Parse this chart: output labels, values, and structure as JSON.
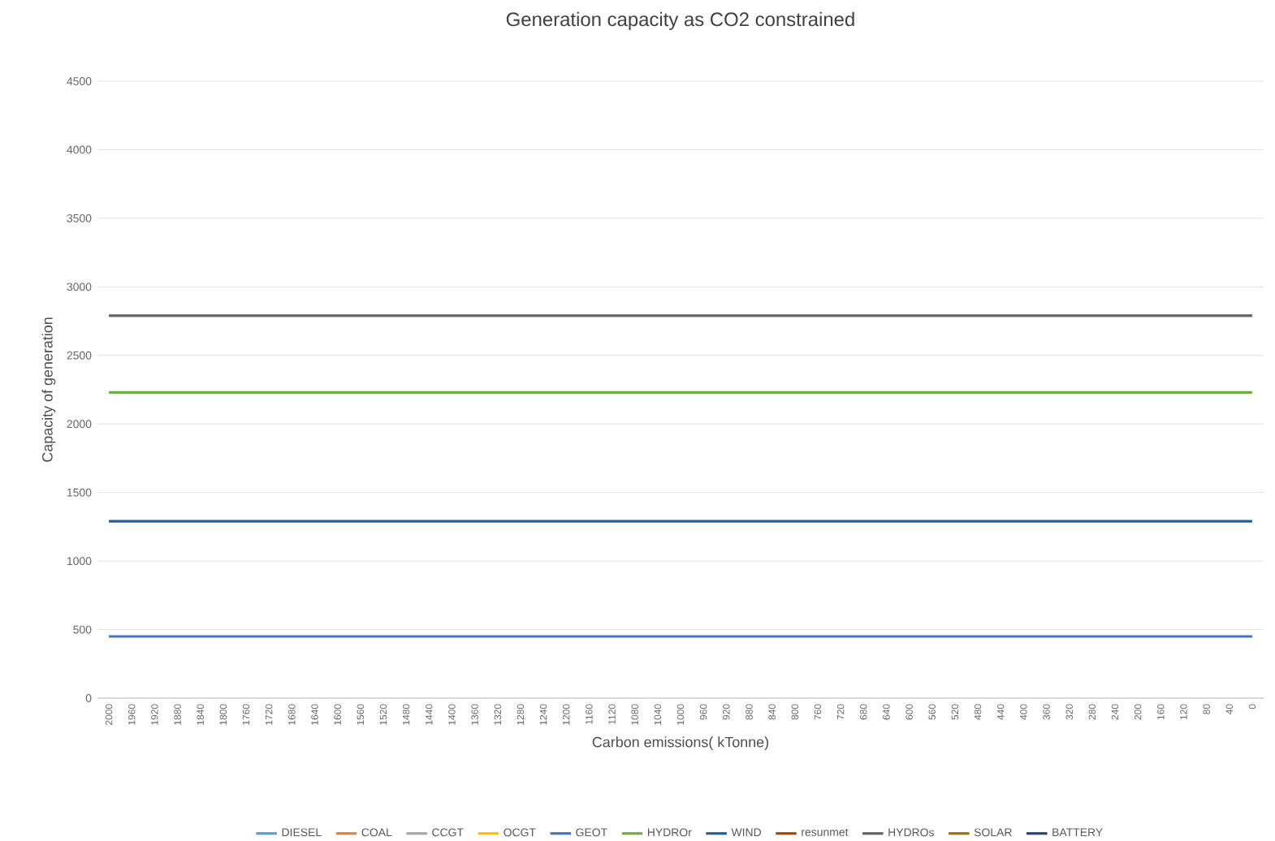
{
  "chart_data": {
    "type": "line",
    "title": "Generation capacity as CO2 constrained",
    "xlabel": "Carbon emissions( kTonne)",
    "ylabel": "Capacity of generation",
    "categories": [
      "2000",
      "1960",
      "1920",
      "1880",
      "1840",
      "1800",
      "1760",
      "1720",
      "1680",
      "1640",
      "1600",
      "1560",
      "1520",
      "1480",
      "1440",
      "1400",
      "1360",
      "1320",
      "1280",
      "1240",
      "1200",
      "1160",
      "1120",
      "1080",
      "1040",
      "1000",
      "960",
      "920",
      "880",
      "840",
      "800",
      "760",
      "720",
      "680",
      "640",
      "600",
      "560",
      "520",
      "480",
      "440",
      "400",
      "360",
      "320",
      "280",
      "240",
      "200",
      "160",
      "120",
      "80",
      "40",
      "0"
    ],
    "ylim": [
      0,
      4500
    ],
    "yticks": [
      0,
      500,
      1000,
      1500,
      2000,
      2500,
      3000,
      3500,
      4000,
      4500
    ],
    "grid": "y",
    "legend": "bottom",
    "marker": "none",
    "line_style": "solid",
    "series": [
      {
        "name": "DIESEL",
        "color": "#5b9bd5",
        "values": [
          null,
          null,
          null,
          null,
          null,
          null,
          null,
          null,
          null,
          null,
          null,
          null,
          null,
          null,
          null,
          null,
          null,
          null,
          null,
          null,
          null,
          null,
          null,
          null,
          null,
          null,
          null,
          null,
          null,
          null,
          null,
          null,
          null,
          null,
          null,
          null,
          null,
          null,
          null,
          null,
          null,
          null,
          null,
          null,
          null,
          null,
          null,
          null,
          null,
          null,
          null
        ]
      },
      {
        "name": "COAL",
        "color": "#ed7d31",
        "values": [
          null,
          null,
          null,
          null,
          null,
          null,
          null,
          null,
          null,
          null,
          null,
          null,
          null,
          null,
          null,
          null,
          null,
          null,
          null,
          null,
          null,
          null,
          null,
          null,
          null,
          null,
          null,
          null,
          null,
          null,
          null,
          null,
          null,
          null,
          null,
          null,
          null,
          null,
          null,
          null,
          null,
          null,
          null,
          null,
          null,
          null,
          null,
          null,
          null,
          null,
          null
        ]
      },
      {
        "name": "CCGT",
        "color": "#a5a5a5",
        "values": [
          null,
          null,
          null,
          null,
          null,
          null,
          null,
          null,
          null,
          null,
          null,
          null,
          null,
          null,
          null,
          null,
          null,
          null,
          null,
          null,
          null,
          null,
          null,
          null,
          null,
          null,
          null,
          null,
          null,
          null,
          null,
          null,
          null,
          null,
          null,
          null,
          null,
          null,
          null,
          null,
          null,
          null,
          null,
          null,
          null,
          null,
          null,
          null,
          null,
          null,
          null
        ]
      },
      {
        "name": "OCGT",
        "color": "#ffc000",
        "values": [
          null,
          null,
          null,
          null,
          null,
          null,
          null,
          null,
          null,
          null,
          null,
          null,
          null,
          null,
          null,
          null,
          null,
          null,
          null,
          null,
          null,
          null,
          null,
          null,
          null,
          null,
          null,
          null,
          null,
          null,
          null,
          null,
          null,
          null,
          null,
          null,
          null,
          null,
          null,
          null,
          null,
          null,
          null,
          null,
          null,
          null,
          null,
          null,
          null,
          null,
          null
        ]
      },
      {
        "name": "GEOT",
        "color": "#4472c4",
        "values": [
          450,
          450,
          450,
          450,
          450,
          450,
          450,
          450,
          450,
          450,
          450,
          450,
          450,
          450,
          450,
          450,
          450,
          450,
          450,
          450,
          450,
          450,
          450,
          450,
          450,
          450,
          450,
          450,
          450,
          450,
          450,
          450,
          450,
          450,
          450,
          450,
          450,
          450,
          450,
          450,
          450,
          450,
          450,
          450,
          450,
          450,
          450,
          450,
          450,
          450,
          450
        ]
      },
      {
        "name": "HYDROr",
        "color": "#70ad47",
        "values": [
          2230,
          2230,
          2230,
          2230,
          2230,
          2230,
          2230,
          2230,
          2230,
          2230,
          2230,
          2230,
          2230,
          2230,
          2230,
          2230,
          2230,
          2230,
          2230,
          2230,
          2230,
          2230,
          2230,
          2230,
          2230,
          2230,
          2230,
          2230,
          2230,
          2230,
          2230,
          2230,
          2230,
          2230,
          2230,
          2230,
          2230,
          2230,
          2230,
          2230,
          2230,
          2230,
          2230,
          2230,
          2230,
          2230,
          2230,
          2230,
          2230,
          2230,
          2230
        ]
      },
      {
        "name": "WIND",
        "color": "#255e91",
        "values": [
          1290,
          1290,
          1290,
          1290,
          1290,
          1290,
          1290,
          1290,
          1290,
          1290,
          1290,
          1290,
          1290,
          1290,
          1290,
          1290,
          1290,
          1290,
          1290,
          1290,
          1290,
          1290,
          1290,
          1290,
          1290,
          1290,
          1290,
          1290,
          1290,
          1290,
          1290,
          1290,
          1290,
          1290,
          1290,
          1290,
          1290,
          1290,
          1290,
          1290,
          1290,
          1290,
          1290,
          1290,
          1290,
          1290,
          1290,
          1290,
          1290,
          1290,
          1290
        ]
      },
      {
        "name": "resunmet",
        "color": "#9e480e",
        "values": [
          null,
          null,
          null,
          null,
          null,
          null,
          null,
          null,
          null,
          null,
          null,
          null,
          null,
          null,
          null,
          null,
          null,
          null,
          null,
          null,
          null,
          null,
          null,
          null,
          null,
          null,
          null,
          null,
          null,
          null,
          null,
          null,
          null,
          null,
          null,
          null,
          null,
          null,
          null,
          null,
          null,
          null,
          null,
          null,
          null,
          null,
          null,
          null,
          null,
          null,
          null
        ]
      },
      {
        "name": "HYDROs",
        "color": "#636363",
        "values": [
          2790,
          2790,
          2790,
          2790,
          2790,
          2790,
          2790,
          2790,
          2790,
          2790,
          2790,
          2790,
          2790,
          2790,
          2790,
          2790,
          2790,
          2790,
          2790,
          2790,
          2790,
          2790,
          2790,
          2790,
          2790,
          2790,
          2790,
          2790,
          2790,
          2790,
          2790,
          2790,
          2790,
          2790,
          2790,
          2790,
          2790,
          2790,
          2790,
          2790,
          2790,
          2790,
          2790,
          2790,
          2790,
          2790,
          2790,
          2790,
          2790,
          2790,
          2790
        ]
      },
      {
        "name": "SOLAR",
        "color": "#997300",
        "values": [
          null,
          null,
          null,
          null,
          null,
          null,
          null,
          null,
          null,
          null,
          null,
          null,
          null,
          null,
          null,
          null,
          null,
          null,
          null,
          null,
          null,
          null,
          null,
          null,
          null,
          null,
          null,
          null,
          null,
          null,
          null,
          null,
          null,
          null,
          null,
          null,
          null,
          null,
          null,
          null,
          null,
          null,
          null,
          null,
          null,
          null,
          null,
          null,
          null,
          null,
          null
        ]
      },
      {
        "name": "BATTERY",
        "color": "#264478",
        "values": [
          null,
          null,
          null,
          null,
          null,
          null,
          null,
          null,
          null,
          null,
          null,
          null,
          null,
          null,
          null,
          null,
          null,
          null,
          null,
          null,
          null,
          null,
          null,
          null,
          null,
          null,
          null,
          null,
          null,
          null,
          null,
          null,
          null,
          null,
          null,
          null,
          null,
          null,
          null,
          null,
          null,
          null,
          null,
          null,
          null,
          null,
          null,
          null,
          null,
          null,
          null
        ]
      }
    ]
  }
}
